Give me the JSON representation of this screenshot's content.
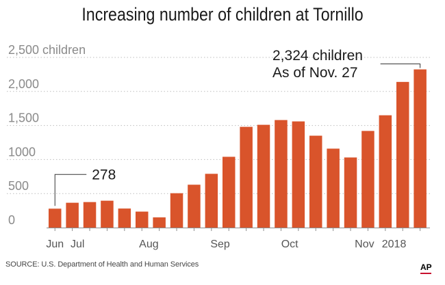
{
  "chart_data": {
    "type": "bar",
    "title": "Increasing number of children at Tornillo",
    "ylim": [
      0,
      2500
    ],
    "y_ticks": [
      {
        "value": 0,
        "label": "0"
      },
      {
        "value": 500,
        "label": "500"
      },
      {
        "value": 1000,
        "label": "1000"
      },
      {
        "value": 1500,
        "label": "1,500"
      },
      {
        "value": 2000,
        "label": "2,000"
      },
      {
        "value": 2500,
        "label": "2,500 children"
      }
    ],
    "grid": true,
    "values": [
      278,
      365,
      375,
      395,
      280,
      235,
      150,
      505,
      630,
      790,
      1040,
      1480,
      1510,
      1580,
      1560,
      1350,
      1160,
      1030,
      1420,
      1650,
      2140,
      2324
    ],
    "x_tick_labels": [
      {
        "label": "Jun",
        "index": 0
      },
      {
        "label": "Jul",
        "index": 1.3
      },
      {
        "label": "Aug",
        "index": 5.4
      },
      {
        "label": "Sep",
        "index": 9.5
      },
      {
        "label": "Oct",
        "index": 13.5
      },
      {
        "label": "Nov",
        "index": 17.8
      },
      {
        "label": "2018",
        "index": 19.5
      }
    ],
    "annotations": [
      {
        "bar_index": 0,
        "lines": [
          "278"
        ]
      },
      {
        "bar_index": 21,
        "lines": [
          "2,324 children",
          "As of Nov. 27"
        ]
      }
    ],
    "bar_color": "#d9542b"
  },
  "footer": {
    "source": "SOURCE: U.S. Department of Health and Human Services",
    "logo": "AP"
  }
}
